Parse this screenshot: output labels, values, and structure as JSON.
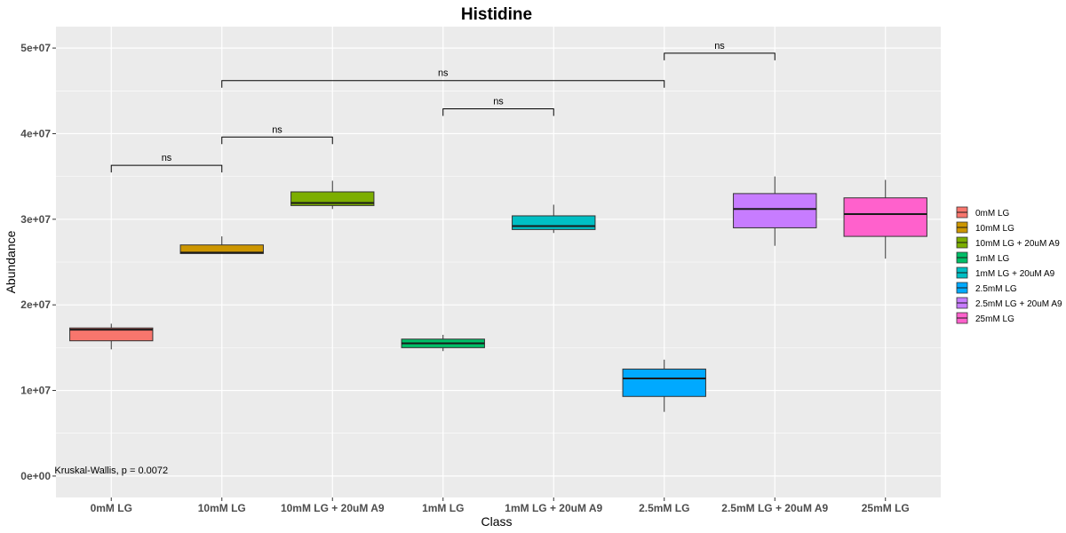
{
  "chart_data": {
    "type": "box",
    "title": "Histidine",
    "xlabel": "Class",
    "ylabel": "Abundance",
    "ylim": [
      -2500000,
      52500000
    ],
    "yticks": [
      0,
      10000000,
      20000000,
      30000000,
      40000000,
      50000000
    ],
    "ytick_labels": [
      "0e+00",
      "1e+07",
      "2e+07",
      "3e+07",
      "4e+07",
      "5e+07"
    ],
    "categories": [
      "0mM LG",
      "10mM LG",
      "10mM LG + 20uM A9",
      "1mM LG",
      "1mM LG + 20uM A9",
      "2.5mM LG",
      "2.5mM LG + 20uM A9",
      "25mM LG"
    ],
    "colors": [
      "#F8766D",
      "#CD9600",
      "#7CAE00",
      "#00BE67",
      "#00BFC4",
      "#00A9FF",
      "#C77CFF",
      "#FF61CC"
    ],
    "boxes": [
      {
        "min": 14800000,
        "q1": 15800000,
        "median": 17100000,
        "q3": 17300000,
        "max": 17800000
      },
      {
        "min": 26000000,
        "q1": 26000000,
        "median": 26100000,
        "q3": 27000000,
        "max": 28000000
      },
      {
        "min": 31200000,
        "q1": 31600000,
        "median": 31900000,
        "q3": 33200000,
        "max": 34500000
      },
      {
        "min": 14600000,
        "q1": 15000000,
        "median": 15500000,
        "q3": 16000000,
        "max": 16500000
      },
      {
        "min": 28400000,
        "q1": 28800000,
        "median": 29200000,
        "q3": 30400000,
        "max": 31700000
      },
      {
        "min": 7500000,
        "q1": 9300000,
        "median": 11400000,
        "q3": 12500000,
        "max": 13600000
      },
      {
        "min": 26900000,
        "q1": 29000000,
        "median": 31200000,
        "q3": 33000000,
        "max": 35000000
      },
      {
        "min": 25400000,
        "q1": 28000000,
        "median": 30600000,
        "q3": 32500000,
        "max": 34600000
      }
    ],
    "comparisons": [
      {
        "from": 0,
        "to": 1,
        "y": 36300000,
        "label": "ns"
      },
      {
        "from": 1,
        "to": 2,
        "y": 39600000,
        "label": "ns"
      },
      {
        "from": 3,
        "to": 4,
        "y": 42900000,
        "label": "ns"
      },
      {
        "from": 1,
        "to": 5,
        "y": 46200000,
        "label": "ns"
      },
      {
        "from": 5,
        "to": 6,
        "y": 49400000,
        "label": "ns"
      }
    ],
    "annotation": {
      "text": "Kruskal-Wallis, p = 0.0072",
      "x_category": 0,
      "y": 300000
    },
    "legend": {
      "position": "right",
      "entries": [
        "0mM LG",
        "10mM LG",
        "10mM LG + 20uM A9",
        "1mM LG",
        "1mM LG + 20uM A9",
        "2.5mM LG",
        "2.5mM LG + 20uM A9",
        "25mM LG"
      ]
    },
    "grid": true,
    "panel_background": "#EBEBEB",
    "grid_color": "#FFFFFF"
  }
}
